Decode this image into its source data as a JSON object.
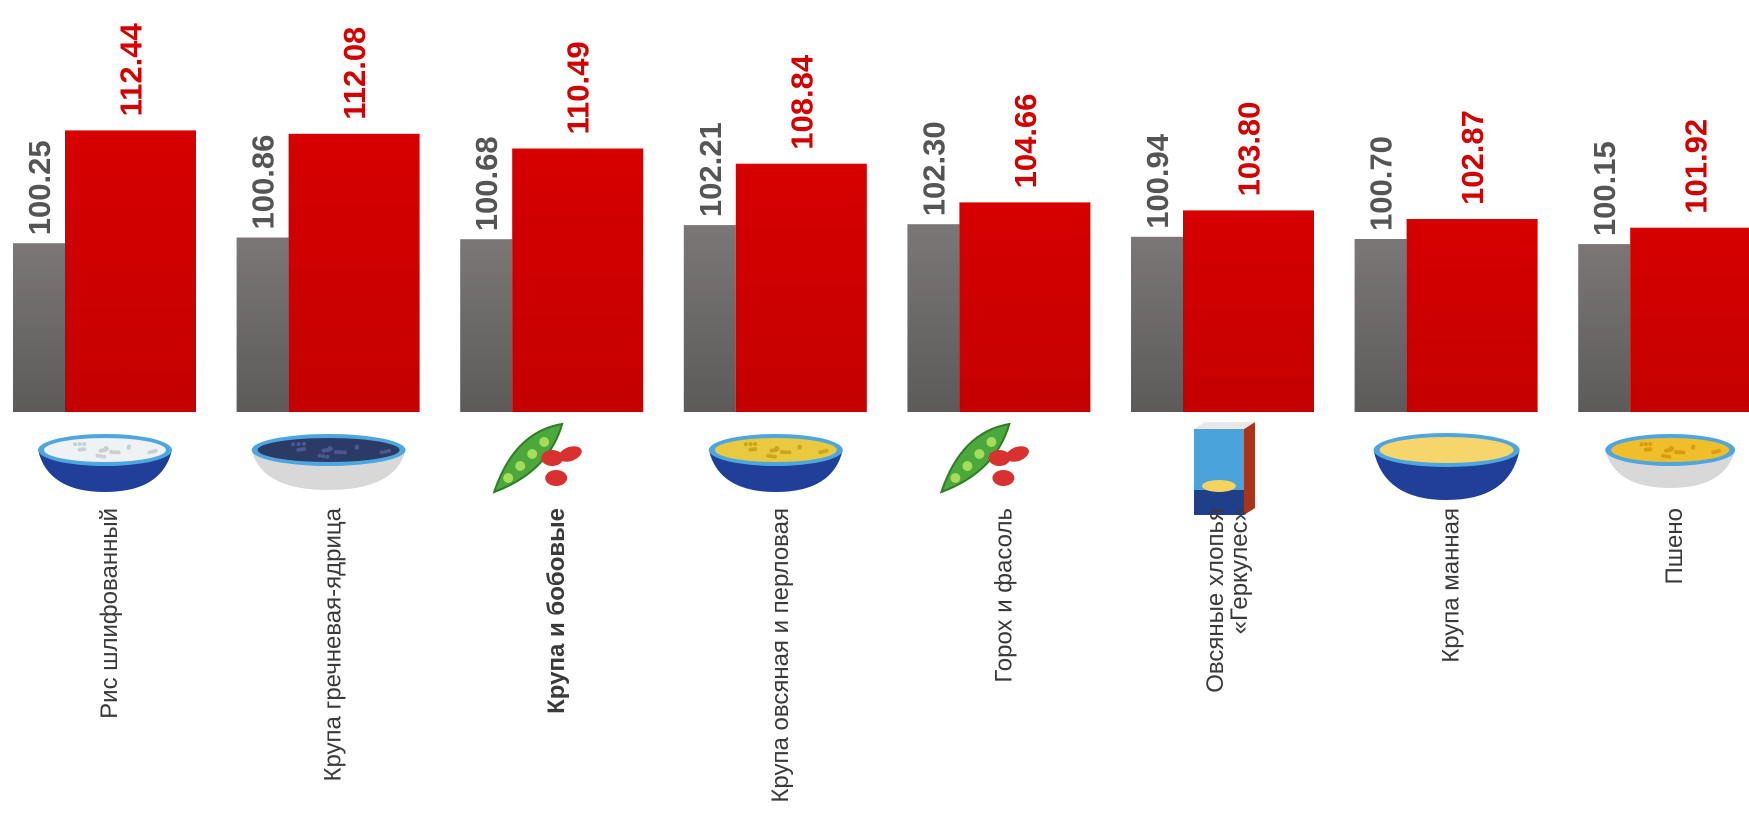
{
  "chart_data": {
    "type": "bar",
    "title": "",
    "xlabel": "",
    "ylabel": "",
    "ylim": [
      82,
      114
    ],
    "grid": false,
    "categories": [
      "Рис шлифованный",
      "Крупа гречневая-ядрица",
      "Крупа и бобовые",
      "Крупа овсяная и перловая",
      "Горох и фасоль",
      "Овсяные хлопья «Геркулес»",
      "Крупа манная",
      "Пшено"
    ],
    "category_bold": [
      false,
      false,
      true,
      false,
      false,
      false,
      false,
      false
    ],
    "category_icons": [
      "rice-bowl-icon",
      "buckwheat-bowl-icon",
      "peas-and-beans-icon",
      "oat-barley-bowl-icon",
      "peas-and-beans-icon",
      "oat-flakes-box-icon",
      "semolina-bowl-icon",
      "millet-bowl-icon"
    ],
    "series": [
      {
        "color": "#6f6c6c",
        "values": [
          100.25,
          100.86,
          100.68,
          102.21,
          102.3,
          100.94,
          100.7,
          100.15
        ],
        "labels": [
          "100.25",
          "100.86",
          "100.68",
          "102.21",
          "102.30",
          "100.94",
          "100.70",
          "100.15"
        ]
      },
      {
        "color": "#d40000",
        "values": [
          112.44,
          112.08,
          110.49,
          108.84,
          104.66,
          103.8,
          102.87,
          101.92
        ],
        "labels": [
          "112.44",
          "112.08",
          "110.49",
          "108.84",
          "104.66",
          "103.80",
          "102.87",
          "101.92"
        ]
      }
    ]
  },
  "colors": {
    "gray_top": "#7b7777",
    "gray_bottom": "#5d5a5a",
    "gray_label": "#555555",
    "red_top": "#d60000",
    "red_bottom": "#c40000",
    "red_label": "#d40000",
    "category_text": "#3a3a3a"
  }
}
